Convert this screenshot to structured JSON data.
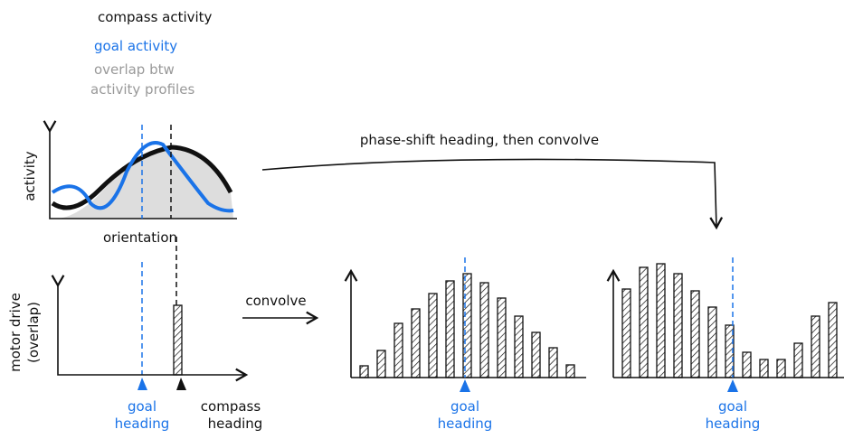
{
  "legend": {
    "compass": "compass activity",
    "goal": "goal activity",
    "overlap": [
      "overlap btw",
      "activity profiles"
    ]
  },
  "top_plot": {
    "y_label": "activity",
    "x_label": "orientation"
  },
  "arrow_label": "phase-shift heading, then convolve",
  "motor_plot": {
    "y_label": [
      "motor drive",
      "(overlap)"
    ],
    "bar": 77,
    "goal_label": [
      "goal",
      "heading"
    ],
    "compass_label": [
      "compass",
      "heading"
    ]
  },
  "convolve_label": "convolve",
  "panels": [
    {
      "values": [
        13,
        30,
        60,
        76,
        93,
        107,
        115,
        105,
        88,
        68,
        50,
        33,
        14
      ],
      "goal_label": [
        "goal",
        "heading"
      ]
    },
    {
      "values": [
        98,
        122,
        126,
        115,
        96,
        78,
        58,
        28,
        20,
        20,
        38,
        68,
        83
      ],
      "goal_label": [
        "goal",
        "heading"
      ]
    }
  ]
}
